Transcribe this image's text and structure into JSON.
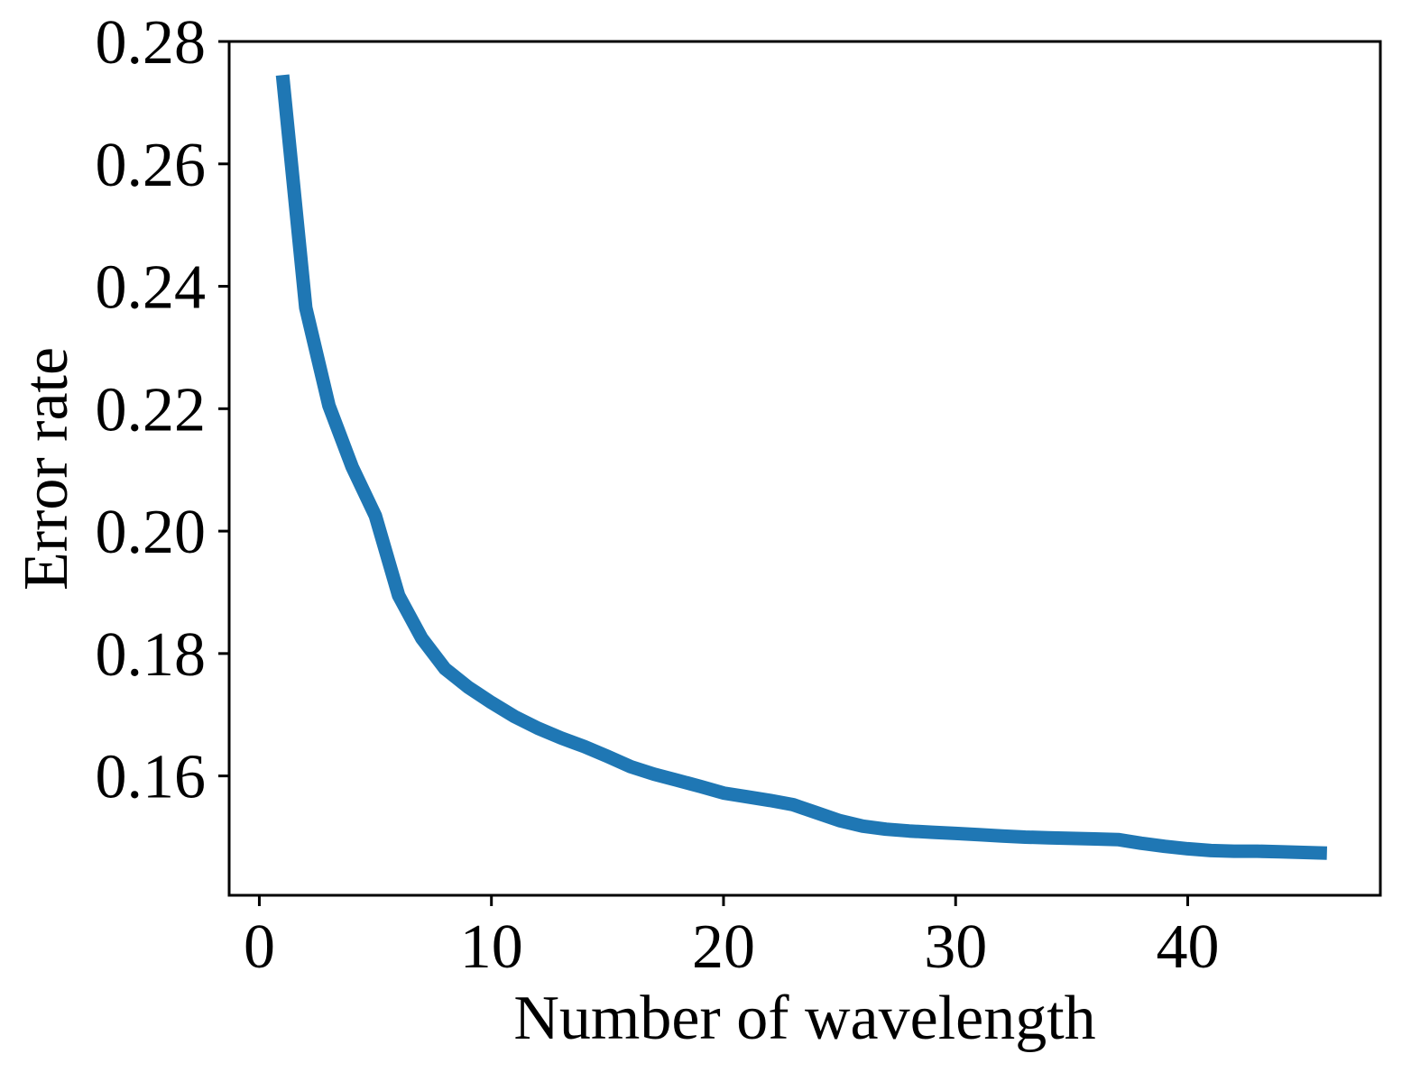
{
  "chart_data": {
    "type": "line",
    "xlabel": "Number of wavelength",
    "ylabel": "Error rate",
    "xlim": [
      -1.3,
      48.3
    ],
    "ylim": [
      0.1405,
      0.28
    ],
    "xticks": [
      0,
      10,
      20,
      30,
      40
    ],
    "xtick_labels": [
      "0",
      "10",
      "20",
      "30",
      "40"
    ],
    "yticks": [
      0.16,
      0.18,
      0.2,
      0.22,
      0.24,
      0.26,
      0.28
    ],
    "ytick_labels": [
      "0.16",
      "0.18",
      "0.20",
      "0.22",
      "0.24",
      "0.26",
      "0.28"
    ],
    "grid": false,
    "series": [
      {
        "color": "#1f77b4",
        "x": [
          1,
          2,
          3,
          4,
          5,
          6,
          7,
          8,
          9,
          10,
          11,
          12,
          13,
          14,
          15,
          16,
          17,
          18,
          19,
          20,
          21,
          22,
          23,
          24,
          25,
          26,
          27,
          28,
          29,
          30,
          31,
          32,
          33,
          34,
          35,
          36,
          37,
          38,
          39,
          40,
          41,
          42,
          43,
          44,
          45,
          46
        ],
        "y": [
          0.2745,
          0.2365,
          0.2205,
          0.2105,
          0.2025,
          0.1895,
          0.1825,
          0.1775,
          0.1745,
          0.172,
          0.1697,
          0.1678,
          0.1662,
          0.1648,
          0.1632,
          0.1615,
          0.1603,
          0.1593,
          0.1583,
          0.1572,
          0.1566,
          0.156,
          0.1553,
          0.154,
          0.1527,
          0.1518,
          0.1513,
          0.151,
          0.1508,
          0.1506,
          0.1504,
          0.1502,
          0.15,
          0.1499,
          0.1498,
          0.1497,
          0.1496,
          0.149,
          0.1485,
          0.1481,
          0.1478,
          0.1477,
          0.1477,
          0.1476,
          0.1475,
          0.1474
        ]
      }
    ]
  }
}
